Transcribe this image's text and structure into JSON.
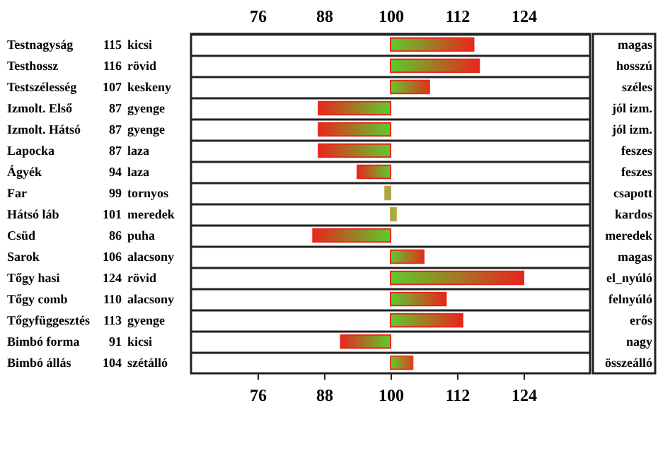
{
  "chart_data": {
    "type": "bar",
    "orientation": "horizontal",
    "categories": [
      "Testnagyság",
      "Testhossz",
      "Testszélesség",
      "Izmolt. Első",
      "Izmolt. Hátsó",
      "Lapocka",
      "Ágyék",
      "Far",
      "Hátsó láb",
      "Csüd",
      "Sarok",
      "Tőgy hasi",
      "Tőgy comb",
      "Tőgyfüggesztés",
      "Bimbó forma",
      "Bimbó állás"
    ],
    "base": [
      100,
      100,
      100,
      100,
      100,
      100,
      100,
      100,
      100,
      100,
      100,
      100,
      100,
      100,
      100,
      100
    ],
    "values": [
      15,
      16,
      7,
      -13,
      -13,
      -13,
      -6,
      -1,
      1,
      -14,
      6,
      24,
      10,
      13,
      -9,
      4
    ],
    "value_labels": [
      "115",
      "116",
      "107",
      "87",
      "87",
      "87",
      "94",
      "99",
      "101",
      "86",
      "106",
      "124",
      "110",
      "113",
      "91",
      "104"
    ],
    "colors": [
      "#e8261c",
      "#e8261c",
      "#e0301c",
      "#e8261c",
      "#e8261c",
      "#e8261c",
      "#e8261c",
      "#c8a050",
      "#c8a050",
      "#e8261c",
      "#e0301c",
      "#e8261c",
      "#e8261c",
      "#e8261c",
      "#e8261c",
      "#e0401c"
    ],
    "xlim": [
      64,
      136
    ],
    "xticks": [
      76,
      88,
      100,
      112,
      124
    ],
    "x2lim": [
      64,
      136
    ],
    "x2ticks": [
      76,
      88,
      100,
      112,
      124
    ],
    "grid": "y",
    "annotations": [
      "kicsi",
      "magas",
      "rövid",
      "hosszú",
      "keskeny",
      "széles",
      "gyenge",
      "jól izm.",
      "gyenge",
      "jól izm.",
      "laza",
      "feszes",
      "laza",
      "feszes",
      "tornyos",
      "csapott",
      "meredek",
      "kardos",
      "puha",
      "meredek",
      "alacsony",
      "magas",
      "rövid",
      "el_nyúló",
      "alacsony",
      "felnyúló",
      "gyenge",
      "erős",
      "kicsi",
      "nagy",
      "szétálló",
      "összeálló"
    ]
  }
}
